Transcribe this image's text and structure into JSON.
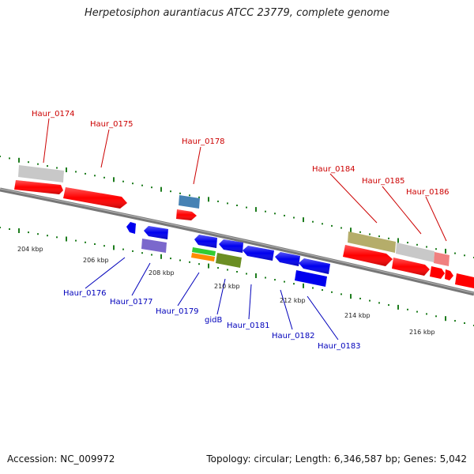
{
  "title": "Herpetosiphon aurantiacus ATCC 23779, complete genome",
  "footer": {
    "accession": "Accession: NC_009972",
    "summary": "Topology: circular; Length: 6,346,587 bp; Genes: 5,042"
  },
  "colors": {
    "background": "#ffffff",
    "backbone": "#707070",
    "tick": "#1e7d1e",
    "label_forward": "#cc0000",
    "label_reverse": "#0000bb",
    "position_label": "#222222"
  },
  "position_labels": [
    "204 kbp",
    "206 kbp",
    "208 kbp",
    "210 kbp",
    "212 kbp",
    "214 kbp",
    "216 kbp"
  ],
  "gene_labels": [
    {
      "text": "Haur_0174",
      "strand": "forward"
    },
    {
      "text": "Haur_0175",
      "strand": "forward"
    },
    {
      "text": "Haur_0178",
      "strand": "forward"
    },
    {
      "text": "Haur_0184",
      "strand": "forward"
    },
    {
      "text": "Haur_0185",
      "strand": "forward"
    },
    {
      "text": "Haur_0186",
      "strand": "forward"
    },
    {
      "text": "Haur_0176",
      "strand": "reverse"
    },
    {
      "text": "Haur_0177",
      "strand": "reverse"
    },
    {
      "text": "Haur_0179",
      "strand": "reverse"
    },
    {
      "text": "gidB",
      "strand": "reverse"
    },
    {
      "text": "Haur_0181",
      "strand": "reverse"
    },
    {
      "text": "Haur_0182",
      "strand": "reverse"
    },
    {
      "text": "Haur_0183",
      "strand": "reverse"
    }
  ]
}
